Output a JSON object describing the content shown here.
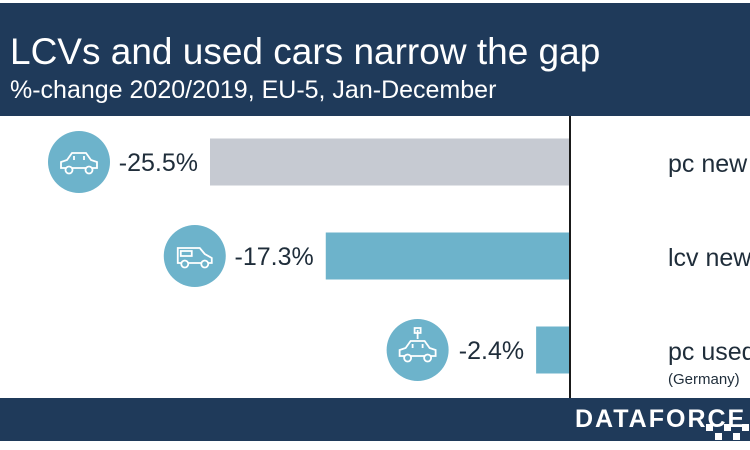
{
  "header": {
    "title": "LCVs and used cars narrow the gap",
    "subtitle": "%-change 2020/2019, EU-5, Jan-December"
  },
  "footer": {
    "logo_text": "DATAFORCE"
  },
  "colors": {
    "navy": "#1f3a5a",
    "teal": "#6db3cb",
    "grey": "#c6cad2",
    "icon_circle": "#6db3cb"
  },
  "chart_data": {
    "type": "bar",
    "orientation": "horizontal",
    "title": "LCVs and used cars narrow the gap",
    "subtitle": "%-change 2020/2019, EU-5, Jan-December",
    "categories": [
      "pc new",
      "lcv new",
      "pc used"
    ],
    "category_notes": [
      "",
      "",
      "(Germany)"
    ],
    "values": [
      -25.5,
      -17.3,
      -2.4
    ],
    "value_labels": [
      "-25.5%",
      "-17.3%",
      "-2.4%"
    ],
    "bar_colors": [
      "#c6cad2",
      "#6db3cb",
      "#6db3cb"
    ],
    "icons": [
      "car-icon",
      "van-icon",
      "used-car-icon"
    ],
    "xlim": [
      -30,
      0
    ],
    "grid": false,
    "legend": "none"
  }
}
